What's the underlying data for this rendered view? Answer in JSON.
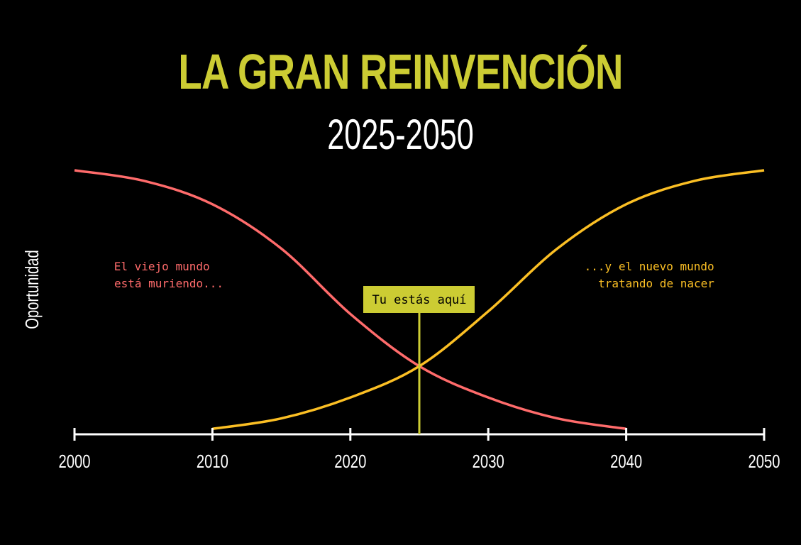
{
  "title": "LA GRAN REINVENCIÓN",
  "subtitle": "2025-2050",
  "colors": {
    "background": "#000000",
    "title": "#cccc33",
    "old_world": "#ff6b6b",
    "new_world": "#fbbf24",
    "marker": "#cccc33",
    "axis": "#ffffff"
  },
  "chart_data": {
    "type": "line",
    "title": "LA GRAN REINVENCIÓN",
    "subtitle": "2025-2050",
    "ylabel": "Oportunidad",
    "xlabel": "",
    "xlim": [
      2000,
      2050
    ],
    "ylim": [
      0,
      100
    ],
    "x_ticks": [
      "2000",
      "2010",
      "2020",
      "2030",
      "2040",
      "2050"
    ],
    "grid": false,
    "series": [
      {
        "name": "El viejo mundo está muriendo...",
        "color": "#ff6b6b",
        "x": [
          2000,
          2005,
          2010,
          2015,
          2020,
          2025,
          2030,
          2035,
          2040
        ],
        "y": [
          100,
          96,
          87,
          70,
          45,
          25,
          13,
          5,
          1
        ]
      },
      {
        "name": "...y el nuevo mundo tratando de nacer",
        "color": "#fbbf24",
        "x": [
          2010,
          2015,
          2020,
          2025,
          2030,
          2035,
          2040,
          2045,
          2050
        ],
        "y": [
          1,
          5,
          13,
          25,
          46,
          70,
          87,
          96,
          100
        ]
      }
    ],
    "annotations": [
      {
        "text": "El viejo mundo\nestá muriendo...",
        "color": "#ff6b6b"
      },
      {
        "text": "...y el nuevo mundo\ntratando de nacer",
        "color": "#fbbf24"
      },
      {
        "text": "Tu estás aquí",
        "x": 2025,
        "type": "marker"
      }
    ]
  }
}
